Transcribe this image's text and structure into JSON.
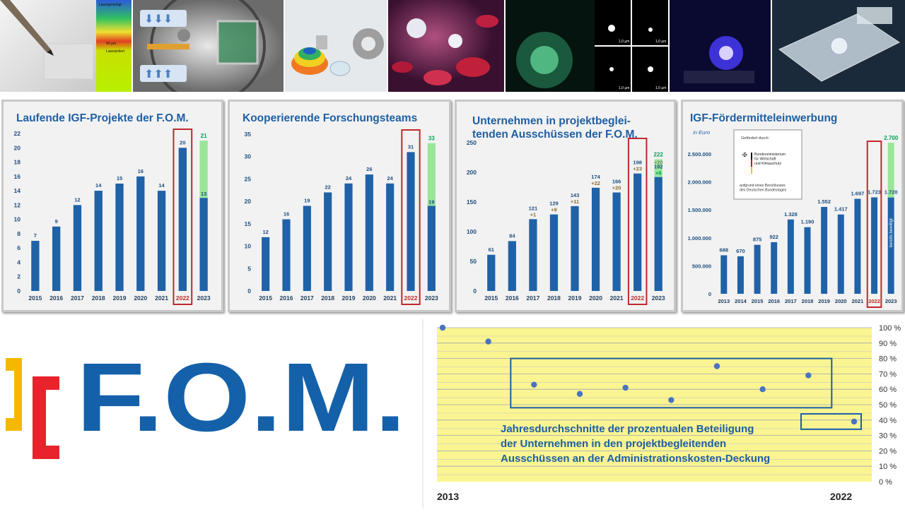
{
  "header_images": [
    {
      "name": "pencil-surface-photo",
      "inset_text": [
        "Lasergereinigt",
        "40 µm",
        "Laserpoliert"
      ]
    },
    {
      "name": "optical-cube-setup-photo"
    },
    {
      "name": "optical-lenses-photo"
    },
    {
      "name": "blood-cells-illustration"
    },
    {
      "name": "fluorescence-microscopy-photo",
      "inset_text": [
        "1,0 µm",
        "1,0 µm",
        "1,0 µm",
        "1,0 µm"
      ]
    },
    {
      "name": "blue-light-optics-photo"
    },
    {
      "name": "glass-microfluidic-chip-photo"
    }
  ],
  "colors": {
    "bar": "#1f62a8",
    "green": "#99e699",
    "highlight": "#c0282d",
    "dark_green": "#00a050",
    "increment": "#8a6d2f",
    "trend_bg": "#faf590"
  },
  "funding_note": {
    "line1": "Gefördert durch:",
    "ministry": [
      "Bundesministerium",
      "für Wirtschaft",
      "und Klimaschutz"
    ],
    "line2": [
      "aufgrund eines Beschlusses",
      "des Deutschen Bundestages"
    ]
  },
  "logo_text": "F.O.M.",
  "chart_data": [
    {
      "type": "bar",
      "title": "Laufende IGF-Projekte der F.O.M.",
      "categories": [
        "2015",
        "2016",
        "2017",
        "2018",
        "2019",
        "2020",
        "2021",
        "2022",
        "2023"
      ],
      "values": [
        7,
        9,
        12,
        14,
        15,
        16,
        14,
        20,
        13
      ],
      "labels": [
        "7",
        "9",
        "12",
        "14",
        "15",
        "16",
        "14",
        "20",
        "13"
      ],
      "stack_top": {
        "total": 21,
        "label": "21"
      },
      "highlight": "2022",
      "yticks": [
        "0",
        "2",
        "4",
        "6",
        "8",
        "10",
        "12",
        "14",
        "16",
        "18",
        "20",
        "22"
      ],
      "ylim": [
        0,
        22
      ]
    },
    {
      "type": "bar",
      "title": "Kooperierende Forschungsteams",
      "categories": [
        "2015",
        "2016",
        "2017",
        "2018",
        "2019",
        "2020",
        "2021",
        "2022",
        "2023"
      ],
      "values": [
        12,
        16,
        19,
        22,
        24,
        26,
        24,
        31,
        19
      ],
      "labels": [
        "12",
        "16",
        "19",
        "22",
        "24",
        "26",
        "24",
        "31",
        "19"
      ],
      "stack_top": {
        "total": 33,
        "label": "33"
      },
      "highlight": "2022",
      "yticks": [
        "0",
        "5",
        "10",
        "15",
        "20",
        "25",
        "30",
        "35"
      ],
      "ylim": [
        0,
        35
      ]
    },
    {
      "type": "bar",
      "title": "Unternehmen in projektbeglei-\ntenden Ausschüssen der F.O.M.",
      "categories": [
        "2015",
        "2016",
        "2017",
        "2018",
        "2019",
        "2020",
        "2021",
        "2022",
        "2023"
      ],
      "values": [
        61,
        84,
        121,
        129,
        143,
        174,
        166,
        198,
        192
      ],
      "labels": [
        "61",
        "84",
        "121",
        "129",
        "143",
        "174",
        "166",
        "198",
        "192"
      ],
      "increments": [
        "",
        "",
        "+1",
        "+9",
        "+11",
        "+22",
        "+20",
        "+23",
        "+8"
      ],
      "stack_top": {
        "total": 222,
        "label": "222",
        "sub": "+20"
      },
      "highlight": "2022",
      "yticks": [
        "0",
        "50",
        "100",
        "150",
        "200",
        "250"
      ],
      "ylim": [
        0,
        250
      ]
    },
    {
      "type": "bar",
      "title": "IGF-Fördermitteleinwerbung",
      "unit": "in Euro",
      "categories": [
        "2013",
        "2014",
        "2015",
        "2016",
        "2017",
        "2018",
        "2019",
        "2020",
        "2021",
        "2022",
        "2023"
      ],
      "values": [
        688,
        670,
        875,
        922,
        1328,
        1190,
        1552,
        1417,
        1697,
        1723,
        1720
      ],
      "labels": [
        "688",
        "670",
        "875",
        "922",
        "1.328",
        "1.190",
        "1.552",
        "1.417",
        "1.697",
        "1.723",
        "1.720"
      ],
      "bar_inner_text": "bereits bewilligt",
      "stack_top": {
        "total": 2700,
        "label": "2.700"
      },
      "highlight": "2022",
      "yticks": [
        "0",
        "500.000",
        "1.000.000",
        "1.500.000",
        "2.000.000",
        "2.500.000"
      ],
      "ylim": [
        0,
        2650
      ]
    },
    {
      "type": "scatter",
      "label": "Jahresdurchschnitte der prozentualen Beteiligung\nder Unternehmen in den projektbegleitenden\nAusschüssen an der Administrationskosten-Deckung",
      "x": [
        2013,
        2014,
        2015,
        2016,
        2017,
        2018,
        2019,
        2020,
        2021,
        2022
      ],
      "values": [
        100,
        91,
        63,
        57,
        61,
        53,
        75,
        60,
        69,
        39
      ],
      "yticks": [
        "0 %",
        "10 %",
        "20 %",
        "30 %",
        "40 %",
        "50 %",
        "60 %",
        "70 %",
        "80 %",
        "90 %",
        "100 %"
      ],
      "ylim": [
        0,
        100
      ],
      "x_start_label": "2013",
      "x_end_label": "2022"
    }
  ]
}
